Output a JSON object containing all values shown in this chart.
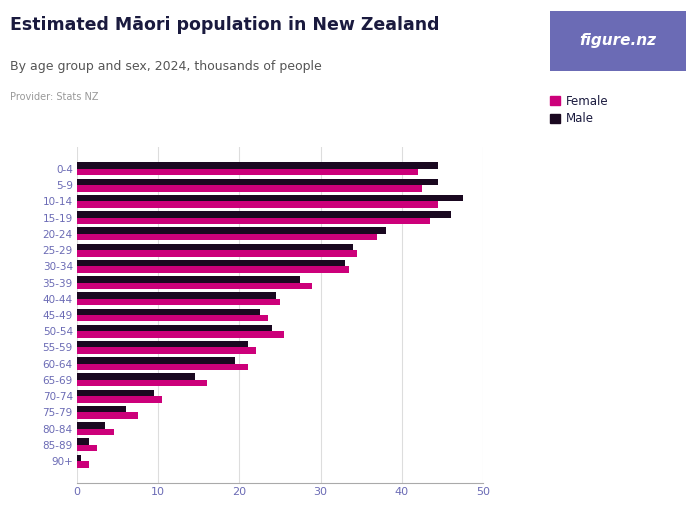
{
  "title": "Estimated Māori population in New Zealand",
  "subtitle": "By age group and sex, 2024, thousands of people",
  "provider": "Provider: Stats NZ",
  "logo_text": "figure.nz",
  "logo_bg": "#6B6BB5",
  "age_groups": [
    "0-4",
    "5-9",
    "10-14",
    "15-19",
    "20-24",
    "25-29",
    "30-34",
    "35-39",
    "40-44",
    "45-49",
    "50-54",
    "55-59",
    "60-64",
    "65-69",
    "70-74",
    "75-79",
    "80-84",
    "85-89",
    "90+"
  ],
  "female": [
    42.0,
    42.5,
    44.5,
    43.5,
    37.0,
    34.5,
    33.5,
    29.0,
    25.0,
    23.5,
    25.5,
    22.0,
    21.0,
    16.0,
    10.5,
    7.5,
    4.5,
    2.5,
    1.5
  ],
  "male": [
    44.5,
    44.5,
    47.5,
    46.0,
    38.0,
    34.0,
    33.0,
    27.5,
    24.5,
    22.5,
    24.0,
    21.0,
    19.5,
    14.5,
    9.5,
    6.0,
    3.5,
    1.5,
    0.5
  ],
  "female_color": "#CC007A",
  "male_color": "#1A0820",
  "xlim": [
    0,
    50
  ],
  "xticks": [
    0,
    10,
    20,
    30,
    40,
    50
  ],
  "title_color": "#1a1a3e",
  "subtitle_color": "#555555",
  "provider_color": "#999999",
  "axis_label_color": "#6B6BB5",
  "grid_color": "#dddddd",
  "bg_color": "#ffffff"
}
